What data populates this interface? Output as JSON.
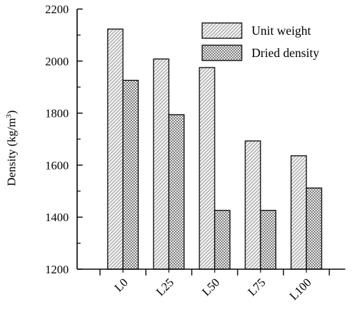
{
  "chart_data": {
    "type": "bar",
    "categories": [
      "L0",
      "L25",
      "L50",
      "L75",
      "L100"
    ],
    "series": [
      {
        "name": "Unit weight",
        "values": [
          2123,
          2008,
          1975,
          1693,
          1636
        ],
        "pattern": "diagonal-hatch"
      },
      {
        "name": "Dried density",
        "values": [
          1926,
          1794,
          1426,
          1426,
          1512
        ],
        "pattern": "checker"
      }
    ],
    "ylabel_main": "Density (kg/m",
    "ylabel_sup": "3",
    "ylabel_close": ")",
    "ylim": [
      1200,
      2200
    ],
    "yticks": [
      1200,
      1400,
      1600,
      1800,
      2000,
      2200
    ],
    "grid": false,
    "legend_position": "top-right"
  }
}
